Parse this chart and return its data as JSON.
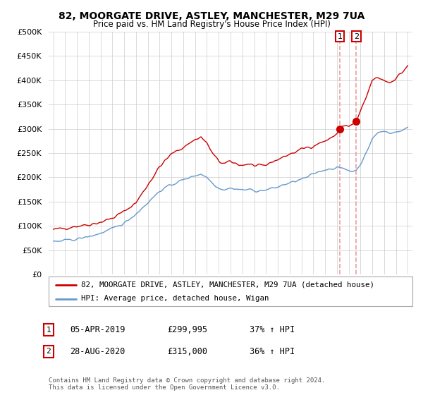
{
  "title": "82, MOORGATE DRIVE, ASTLEY, MANCHESTER, M29 7UA",
  "subtitle": "Price paid vs. HM Land Registry's House Price Index (HPI)",
  "legend_line1": "82, MOORGATE DRIVE, ASTLEY, MANCHESTER, M29 7UA (detached house)",
  "legend_line2": "HPI: Average price, detached house, Wigan",
  "footer": "Contains HM Land Registry data © Crown copyright and database right 2024.\nThis data is licensed under the Open Government Licence v3.0.",
  "ann1_label": "1",
  "ann1_date": "05-APR-2019",
  "ann1_price": "£299,995",
  "ann1_hpi": "37% ↑ HPI",
  "ann1_x": 2019.26,
  "ann1_y": 299995,
  "ann2_label": "2",
  "ann2_date": "28-AUG-2020",
  "ann2_price": "£315,000",
  "ann2_hpi": "36% ↑ HPI",
  "ann2_x": 2020.65,
  "ann2_y": 315000,
  "red_color": "#cc0000",
  "blue_color": "#6699cc",
  "dash_color": "#e8a0a0",
  "ylim": [
    0,
    500000
  ],
  "yticks": [
    0,
    50000,
    100000,
    150000,
    200000,
    250000,
    300000,
    350000,
    400000,
    450000,
    500000
  ],
  "xlim_lo": 1994.6,
  "xlim_hi": 2025.4
}
